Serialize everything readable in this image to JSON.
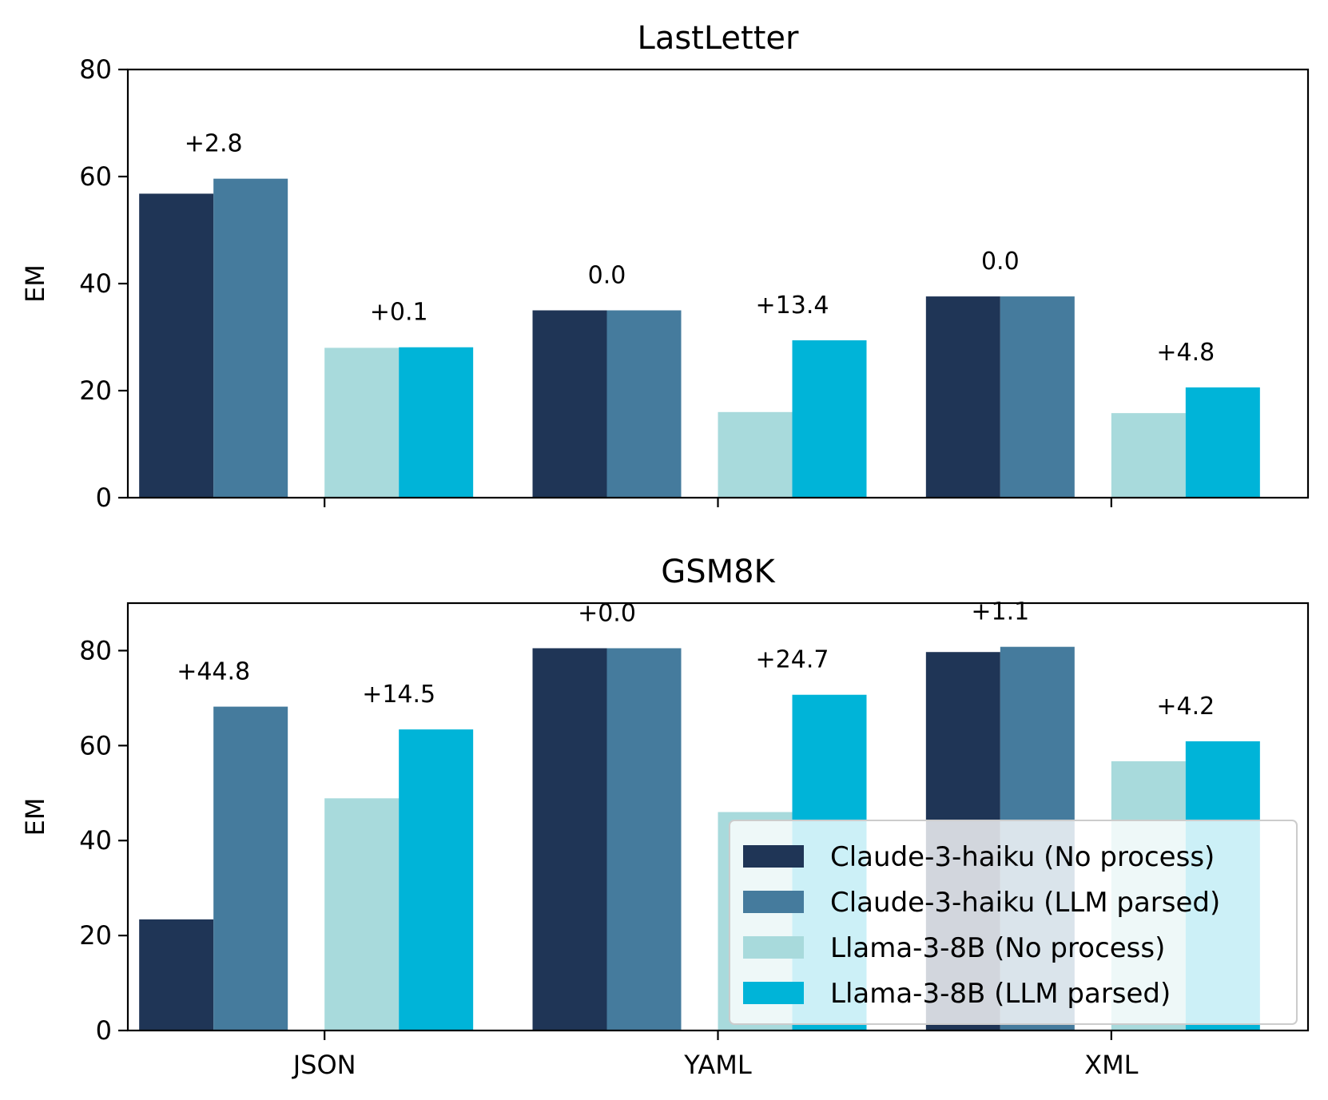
{
  "chart_data": [
    {
      "type": "bar",
      "title": "LastLetter",
      "xlabel": "",
      "ylabel": "EM",
      "ylim": [
        0,
        80
      ],
      "yticks": [
        0,
        20,
        40,
        60,
        80
      ],
      "categories": [
        "JSON",
        "YAML",
        "XML"
      ],
      "show_x_tick_labels": false,
      "series": [
        {
          "name": "Claude-3-haiku (No process)",
          "values": [
            56.8,
            35.0,
            37.6
          ]
        },
        {
          "name": "Claude-3-haiku (LLM parsed)",
          "values": [
            59.6,
            35.0,
            37.6
          ]
        },
        {
          "name": "Llama-3-8B (No process)",
          "values": [
            28.0,
            16.0,
            15.8
          ]
        },
        {
          "name": "Llama-3-8B (LLM parsed)",
          "values": [
            28.1,
            29.4,
            20.6
          ]
        }
      ],
      "annotations": [
        {
          "category": "JSON",
          "group": "Claude-3-haiku",
          "text": "+2.8"
        },
        {
          "category": "JSON",
          "group": "Llama-3-8B",
          "text": "+0.1"
        },
        {
          "category": "YAML",
          "group": "Claude-3-haiku",
          "text": "0.0"
        },
        {
          "category": "YAML",
          "group": "Llama-3-8B",
          "text": "+13.4"
        },
        {
          "category": "XML",
          "group": "Claude-3-haiku",
          "text": "0.0"
        },
        {
          "category": "XML",
          "group": "Llama-3-8B",
          "text": "+4.8"
        }
      ]
    },
    {
      "type": "bar",
      "title": "GSM8K",
      "xlabel": "",
      "ylabel": "EM",
      "ylim": [
        0,
        90
      ],
      "yticks": [
        0,
        20,
        40,
        60,
        80
      ],
      "categories": [
        "JSON",
        "YAML",
        "XML"
      ],
      "show_x_tick_labels": true,
      "series": [
        {
          "name": "Claude-3-haiku (No process)",
          "values": [
            23.4,
            80.5,
            79.7
          ]
        },
        {
          "name": "Claude-3-haiku (LLM parsed)",
          "values": [
            68.2,
            80.5,
            80.8
          ]
        },
        {
          "name": "Llama-3-8B (No process)",
          "values": [
            48.9,
            46.0,
            56.7
          ]
        },
        {
          "name": "Llama-3-8B (LLM parsed)",
          "values": [
            63.4,
            70.7,
            60.9
          ]
        }
      ],
      "annotations": [
        {
          "category": "JSON",
          "group": "Claude-3-haiku",
          "text": "+44.8"
        },
        {
          "category": "JSON",
          "group": "Llama-3-8B",
          "text": "+14.5"
        },
        {
          "category": "YAML",
          "group": "Claude-3-haiku",
          "text": "+0.0"
        },
        {
          "category": "YAML",
          "group": "Llama-3-8B",
          "text": "+24.7"
        },
        {
          "category": "XML",
          "group": "Claude-3-haiku",
          "text": "+1.1"
        },
        {
          "category": "XML",
          "group": "Llama-3-8B",
          "text": "+4.2"
        }
      ],
      "legend": {
        "placement": "lower-right",
        "entries": [
          "Claude-3-haiku (No process)",
          "Claude-3-haiku (LLM parsed)",
          "Llama-3-8B (No process)",
          "Llama-3-8B (LLM parsed)"
        ]
      }
    }
  ],
  "colors": {
    "Claude-3-haiku (No process)": "#1f3556",
    "Claude-3-haiku (LLM parsed)": "#457b9d",
    "Llama-3-8B (No process)": "#a8dadc",
    "Llama-3-8B (LLM parsed)": "#00b4d8"
  }
}
